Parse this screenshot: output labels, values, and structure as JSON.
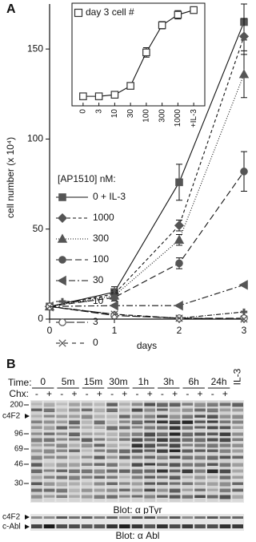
{
  "chart_data": [
    {
      "type": "line",
      "panel": "A",
      "xlabel": "days",
      "ylabel": "cell number (x 10⁴)",
      "x": [
        0,
        1,
        2,
        3
      ],
      "xlim": [
        0,
        3
      ],
      "xticks": [
        0,
        1,
        2,
        3
      ],
      "ylim": [
        0,
        175
      ],
      "yticks": [
        0,
        50,
        100,
        150
      ],
      "legend_title": "[AP1510] nM:",
      "legend": "left",
      "series": [
        {
          "name": "0 + IL-3",
          "color": "#555555",
          "marker": "square",
          "dash": "none",
          "values": [
            7,
            15,
            76,
            165
          ],
          "errors": [
            null,
            3,
            10,
            10
          ]
        },
        {
          "name": "1000",
          "color": "#555555",
          "marker": "diamond",
          "dash": "4 3",
          "values": [
            7,
            14,
            52,
            157
          ],
          "errors": [
            null,
            2,
            3,
            10
          ]
        },
        {
          "name": "300",
          "color": "#555555",
          "marker": "triangle",
          "dash": "1 2",
          "values": [
            7,
            13,
            44,
            136
          ],
          "errors": [
            null,
            2,
            3,
            13
          ]
        },
        {
          "name": "100",
          "color": "#555555",
          "marker": "circle",
          "dash": "8 4",
          "values": [
            7,
            12,
            31,
            82
          ],
          "errors": [
            null,
            2,
            3,
            11
          ]
        },
        {
          "name": "30",
          "color": "#555555",
          "marker": "triangle-left",
          "dash": "8 3 2 3",
          "values": [
            7,
            7.5,
            7.5,
            19
          ]
        },
        {
          "name": "10",
          "color": "#555555",
          "marker": "plus",
          "dash": "6 2 1 2",
          "values": [
            7,
            2.7,
            0.5,
            4
          ]
        },
        {
          "name": "3",
          "color": "#555555",
          "marker": "circle-open",
          "dash": "10 3",
          "values": [
            7,
            2,
            0.5,
            0.5
          ]
        },
        {
          "name": "0",
          "color": "#555555",
          "marker": "x",
          "dash": "5 5",
          "values": [
            7,
            2.7,
            0.5,
            0
          ]
        }
      ]
    },
    {
      "type": "line",
      "categories": [
        "0",
        "3",
        "10",
        "30",
        "100",
        "300",
        "1000",
        "+IL-3"
      ],
      "ylim": [
        -9,
        172
      ],
      "series": [
        {
          "name": "day 3 cell #",
          "color": "#333333",
          "marker": "square-open",
          "dash": "none",
          "values": [
            0,
            0,
            3,
            20,
            84,
            136,
            156,
            165
          ],
          "errors": [
            null,
            null,
            null,
            3,
            9,
            7,
            8,
            5
          ]
        }
      ]
    }
  ],
  "panel_b": {
    "panel": "B",
    "time_label": "Time:",
    "times": [
      "0",
      "5m",
      "15m",
      "30m",
      "1h",
      "3h",
      "6h",
      "24h"
    ],
    "il3_label": "IL-3",
    "chx_label": "Chx:",
    "chx": [
      "-",
      "+"
    ],
    "markers": [
      "200",
      "96",
      "69",
      "46",
      "30"
    ],
    "band_label": "c4F2",
    "blot1": "Blot: α pTyr",
    "blot2_labels": [
      "c4F2",
      "c-Abl"
    ],
    "blot2": "Blot: α Abl"
  }
}
